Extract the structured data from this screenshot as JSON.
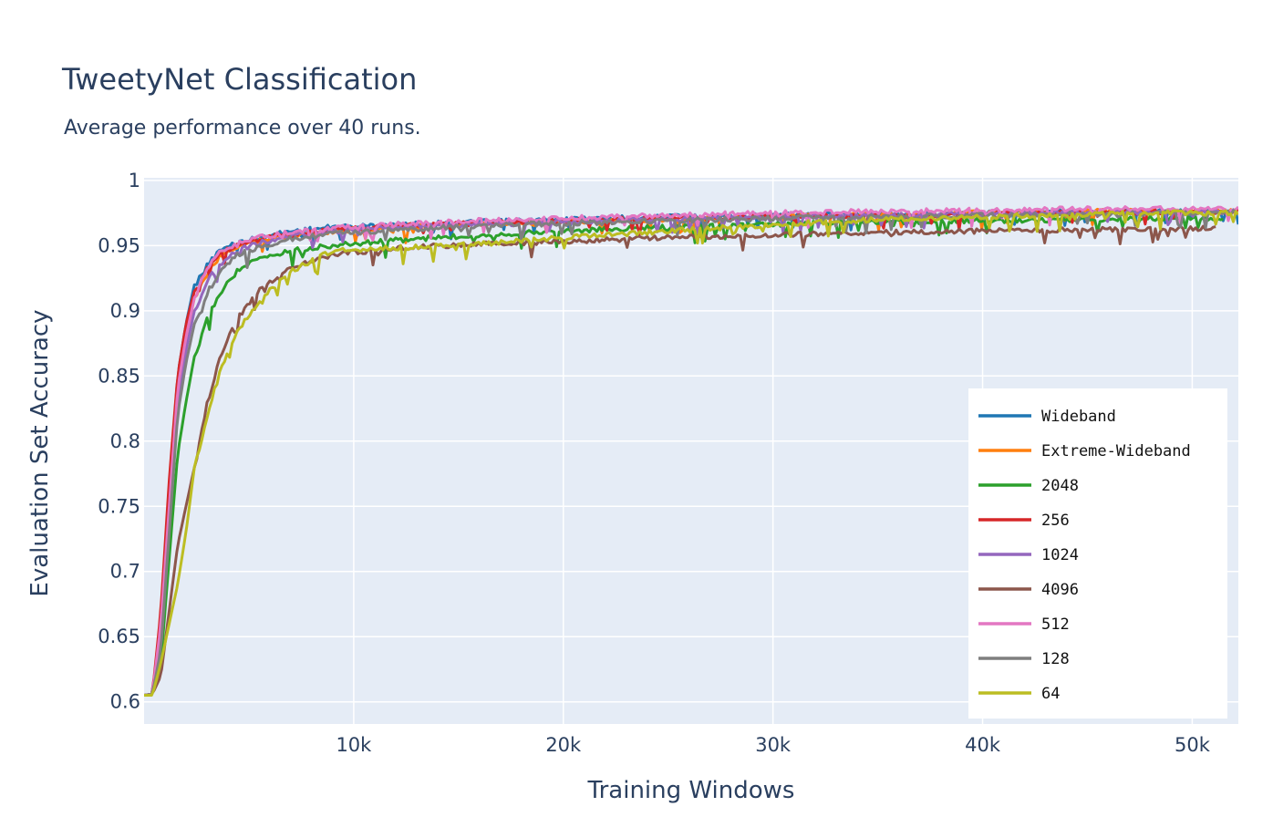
{
  "chart_data": {
    "type": "line",
    "title": "TweetyNet Classification",
    "subtitle": "Average performance over 40 runs.",
    "xlabel": "Training Windows",
    "ylabel": "Evaluation Set Accuracy",
    "xlim": [
      0,
      52200
    ],
    "ylim": [
      0.583,
      1.002
    ],
    "xticks": [
      10000,
      20000,
      30000,
      40000,
      50000
    ],
    "xtick_labels": [
      "10k",
      "20k",
      "30k",
      "40k",
      "50k"
    ],
    "yticks": [
      0.6,
      0.65,
      0.7,
      0.75,
      0.8,
      0.85,
      0.9,
      0.95,
      1
    ],
    "ytick_labels": [
      "0.6",
      "0.65",
      "0.7",
      "0.75",
      "0.8",
      "0.85",
      "0.9",
      "0.95",
      "1"
    ],
    "grid": true,
    "legend_position": "bottom-right",
    "background_color": "#e5ecf6",
    "series": [
      {
        "name": "Wideband",
        "color": "#1f77b4",
        "x": [
          0,
          400,
          800,
          1200,
          1600,
          2000,
          2400,
          3000,
          3600,
          4400,
          5500,
          7000,
          9000,
          12000,
          16000,
          20000,
          25000,
          30000,
          35000,
          40000,
          45000,
          50000,
          52200
        ],
        "y": [
          0.605,
          0.606,
          0.66,
          0.76,
          0.85,
          0.89,
          0.92,
          0.937,
          0.948,
          0.954,
          0.958,
          0.963,
          0.966,
          0.968,
          0.97,
          0.972,
          0.974,
          0.975,
          0.976,
          0.977,
          0.978,
          0.978,
          0.978
        ]
      },
      {
        "name": "Extreme-Wideband",
        "color": "#ff7f0e",
        "x": [
          0,
          400,
          800,
          1200,
          1600,
          2000,
          2400,
          3000,
          3600,
          4400,
          5500,
          7000,
          9000,
          12000,
          16000,
          20000,
          25000,
          30000,
          35000,
          40000,
          45000,
          50000,
          52200
        ],
        "y": [
          0.605,
          0.606,
          0.65,
          0.75,
          0.84,
          0.88,
          0.91,
          0.93,
          0.943,
          0.951,
          0.956,
          0.96,
          0.963,
          0.966,
          0.968,
          0.97,
          0.972,
          0.974,
          0.976,
          0.977,
          0.978,
          0.978,
          0.978
        ]
      },
      {
        "name": "2048",
        "color": "#2ca02c",
        "x": [
          0,
          400,
          800,
          1200,
          1600,
          2000,
          2400,
          3000,
          3600,
          4400,
          5500,
          7000,
          9000,
          12000,
          16000,
          20000,
          25000,
          30000,
          35000,
          40000,
          45000,
          50000,
          51500
        ],
        "y": [
          0.605,
          0.606,
          0.63,
          0.71,
          0.79,
          0.83,
          0.865,
          0.895,
          0.915,
          0.932,
          0.942,
          0.948,
          0.952,
          0.956,
          0.96,
          0.963,
          0.966,
          0.968,
          0.97,
          0.971,
          0.972,
          0.973,
          0.973
        ]
      },
      {
        "name": "256",
        "color": "#d62728",
        "x": [
          0,
          400,
          800,
          1200,
          1600,
          2000,
          2400,
          3000,
          3600,
          4400,
          5500,
          7000,
          9000,
          12000,
          16000,
          20000,
          25000,
          30000,
          35000,
          40000,
          45000,
          50000,
          52200
        ],
        "y": [
          0.605,
          0.606,
          0.67,
          0.77,
          0.85,
          0.89,
          0.915,
          0.935,
          0.945,
          0.952,
          0.957,
          0.961,
          0.964,
          0.967,
          0.969,
          0.971,
          0.973,
          0.974,
          0.975,
          0.976,
          0.977,
          0.978,
          0.978
        ]
      },
      {
        "name": "1024",
        "color": "#9467bd",
        "x": [
          0,
          400,
          800,
          1200,
          1600,
          2000,
          2400,
          3000,
          3600,
          4400,
          5500,
          7000,
          9000,
          12000,
          16000,
          20000,
          25000,
          30000,
          35000,
          40000,
          45000,
          50000,
          52200
        ],
        "y": [
          0.605,
          0.606,
          0.65,
          0.74,
          0.83,
          0.87,
          0.9,
          0.925,
          0.938,
          0.948,
          0.954,
          0.959,
          0.963,
          0.966,
          0.968,
          0.97,
          0.972,
          0.974,
          0.975,
          0.976,
          0.977,
          0.978,
          0.978
        ]
      },
      {
        "name": "4096",
        "color": "#8c564b",
        "x": [
          0,
          400,
          800,
          1200,
          1600,
          2000,
          2400,
          3000,
          3600,
          4400,
          5500,
          7000,
          9000,
          12000,
          16000,
          20000,
          25000,
          30000,
          35000,
          40000,
          45000,
          50000,
          51200
        ],
        "y": [
          0.605,
          0.606,
          0.62,
          0.67,
          0.72,
          0.75,
          0.78,
          0.83,
          0.865,
          0.895,
          0.918,
          0.935,
          0.945,
          0.95,
          0.953,
          0.955,
          0.958,
          0.96,
          0.962,
          0.963,
          0.964,
          0.965,
          0.965
        ]
      },
      {
        "name": "512",
        "color": "#e377c2",
        "x": [
          0,
          400,
          800,
          1200,
          1600,
          2000,
          2400,
          3000,
          3600,
          4400,
          5500,
          7000,
          9000,
          12000,
          16000,
          20000,
          25000,
          30000,
          35000,
          40000,
          45000,
          50000,
          52200
        ],
        "y": [
          0.605,
          0.606,
          0.66,
          0.75,
          0.84,
          0.88,
          0.91,
          0.935,
          0.946,
          0.953,
          0.958,
          0.962,
          0.965,
          0.968,
          0.971,
          0.973,
          0.975,
          0.977,
          0.978,
          0.979,
          0.98,
          0.98,
          0.98
        ]
      },
      {
        "name": "128",
        "color": "#7f7f7f",
        "x": [
          0,
          400,
          800,
          1200,
          1600,
          2000,
          2400,
          3000,
          3600,
          4400,
          5500,
          7000,
          9000,
          12000,
          16000,
          20000,
          25000,
          30000,
          35000,
          40000,
          45000,
          50000,
          52200
        ],
        "y": [
          0.605,
          0.606,
          0.64,
          0.73,
          0.82,
          0.86,
          0.89,
          0.915,
          0.932,
          0.944,
          0.951,
          0.957,
          0.961,
          0.964,
          0.967,
          0.969,
          0.971,
          0.973,
          0.974,
          0.975,
          0.976,
          0.977,
          0.977
        ]
      },
      {
        "name": "64",
        "color": "#bcbd22",
        "x": [
          0,
          400,
          800,
          1200,
          1600,
          2000,
          2400,
          3000,
          3600,
          4400,
          5500,
          7000,
          9000,
          12000,
          16000,
          20000,
          25000,
          30000,
          35000,
          40000,
          45000,
          50000,
          52200
        ],
        "y": [
          0.605,
          0.605,
          0.63,
          0.66,
          0.69,
          0.73,
          0.78,
          0.82,
          0.855,
          0.885,
          0.91,
          0.932,
          0.948,
          0.95,
          0.953,
          0.958,
          0.963,
          0.968,
          0.972,
          0.974,
          0.976,
          0.977,
          0.977
        ]
      }
    ]
  }
}
